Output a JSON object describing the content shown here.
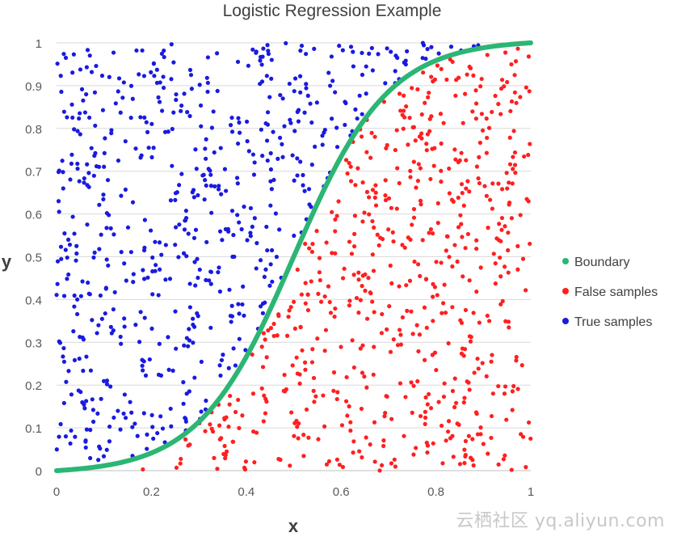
{
  "watermark": "云栖社区 yq.aliyun.com",
  "chart_data": {
    "type": "scatter",
    "title": "Logistic Regression Example",
    "xlabel": "x",
    "ylabel": "y",
    "xlim": [
      0,
      1
    ],
    "ylim": [
      0,
      1
    ],
    "x_ticks": [
      "0",
      "0.2",
      "0.4",
      "0.6",
      "0.8",
      "1"
    ],
    "y_ticks": [
      "0",
      "0.1",
      "0.2",
      "0.3",
      "0.4",
      "0.5",
      "0.6",
      "0.7",
      "0.8",
      "0.9",
      "1"
    ],
    "grid": "horizontal",
    "legend_position": "right",
    "boundary": {
      "type": "logistic",
      "midpoint": 0.5,
      "steepness": 10
    },
    "series": [
      {
        "name": "Boundary",
        "color": "#2bb673",
        "kind": "curve"
      },
      {
        "name": "False samples",
        "color": "#ff1f1f",
        "kind": "points",
        "region": "below boundary",
        "count": 620
      },
      {
        "name": "True samples",
        "color": "#1a1adf",
        "kind": "points",
        "region": "above boundary",
        "count": 620
      }
    ]
  }
}
